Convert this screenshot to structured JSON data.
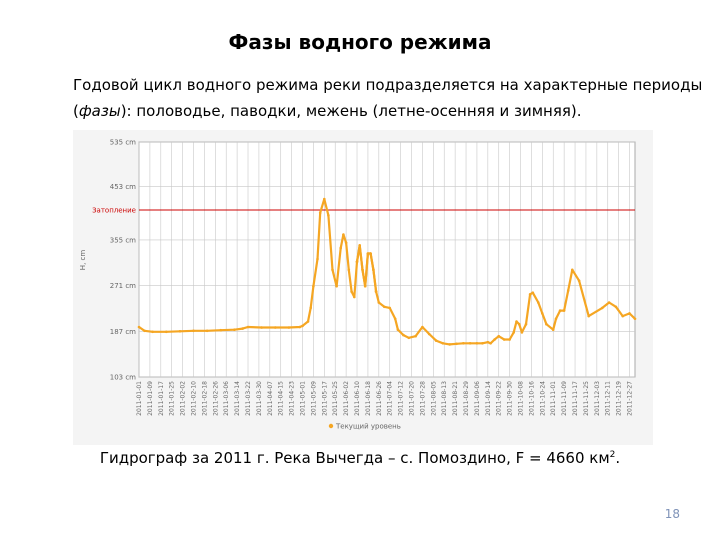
{
  "slide": {
    "title": "Фазы водного режима",
    "body_line1": "Годовой цикл водного режима реки подразделяется на характерные периоды",
    "body_line2_prefix": "(",
    "body_line2_em": "фазы",
    "body_line2_suffix": "): половодье, паводки, межень (летне-осенняя и зимняя).",
    "caption_main": "Гидрограф за 2011 г. Река Вычегда – с. Помоздино, F = 4660 км",
    "caption_sup": "2",
    "caption_end": ".",
    "page_number": "18"
  },
  "colors": {
    "series": "#f5a623",
    "threshold": "#cc0000",
    "grid": "#c8c8c8"
  },
  "chart_data": {
    "type": "line",
    "ylabel": "H, cm",
    "ylim": [
      103,
      535
    ],
    "yticks": [
      {
        "value": 103,
        "label": "103 cm"
      },
      {
        "value": 187,
        "label": "187 cm"
      },
      {
        "value": 271,
        "label": "271 cm"
      },
      {
        "value": 355,
        "label": "355 cm"
      },
      {
        "value": 453,
        "label": "453 cm"
      },
      {
        "value": 535,
        "label": "535 cm"
      }
    ],
    "threshold": {
      "value": 410,
      "label": "Затопление"
    },
    "legend": "Текущий уровень",
    "x_start": "2011-01-01",
    "xlim": [
      0,
      364
    ],
    "xticks": [
      {
        "day": 0,
        "label": "2011-01-01"
      },
      {
        "day": 8,
        "label": "2011-01-09"
      },
      {
        "day": 16,
        "label": "2011-01-17"
      },
      {
        "day": 24,
        "label": "2011-01-25"
      },
      {
        "day": 32,
        "label": "2011-02-02"
      },
      {
        "day": 40,
        "label": "2011-02-10"
      },
      {
        "day": 48,
        "label": "2011-02-18"
      },
      {
        "day": 56,
        "label": "2011-02-26"
      },
      {
        "day": 64,
        "label": "2011-03-06"
      },
      {
        "day": 72,
        "label": "2011-03-14"
      },
      {
        "day": 80,
        "label": "2011-03-22"
      },
      {
        "day": 88,
        "label": "2011-03-30"
      },
      {
        "day": 96,
        "label": "2011-04-07"
      },
      {
        "day": 104,
        "label": "2011-04-15"
      },
      {
        "day": 112,
        "label": "2011-04-23"
      },
      {
        "day": 120,
        "label": "2011-05-01"
      },
      {
        "day": 128,
        "label": "2011-05-09"
      },
      {
        "day": 136,
        "label": "2011-05-17"
      },
      {
        "day": 144,
        "label": "2011-05-25"
      },
      {
        "day": 152,
        "label": "2011-06-02"
      },
      {
        "day": 160,
        "label": "2011-06-10"
      },
      {
        "day": 168,
        "label": "2011-06-18"
      },
      {
        "day": 176,
        "label": "2011-06-26"
      },
      {
        "day": 184,
        "label": "2011-07-04"
      },
      {
        "day": 192,
        "label": "2011-07-12"
      },
      {
        "day": 200,
        "label": "2011-07-20"
      },
      {
        "day": 208,
        "label": "2011-07-28"
      },
      {
        "day": 216,
        "label": "2011-08-05"
      },
      {
        "day": 224,
        "label": "2011-08-13"
      },
      {
        "day": 232,
        "label": "2011-08-21"
      },
      {
        "day": 240,
        "label": "2011-08-29"
      },
      {
        "day": 248,
        "label": "2011-09-06"
      },
      {
        "day": 256,
        "label": "2011-09-14"
      },
      {
        "day": 264,
        "label": "2011-09-22"
      },
      {
        "day": 272,
        "label": "2011-09-30"
      },
      {
        "day": 280,
        "label": "2011-10-08"
      },
      {
        "day": 288,
        "label": "2011-10-16"
      },
      {
        "day": 296,
        "label": "2011-10-24"
      },
      {
        "day": 304,
        "label": "2011-11-01"
      },
      {
        "day": 312,
        "label": "2011-11-09"
      },
      {
        "day": 320,
        "label": "2011-11-17"
      },
      {
        "day": 328,
        "label": "2011-11-25"
      },
      {
        "day": 336,
        "label": "2011-12-03"
      },
      {
        "day": 344,
        "label": "2011-12-11"
      },
      {
        "day": 352,
        "label": "2011-12-19"
      },
      {
        "day": 360,
        "label": "2011-12-27"
      }
    ],
    "grid": true,
    "series": [
      {
        "x": [
          0,
          4,
          10,
          20,
          30,
          40,
          50,
          60,
          70,
          76,
          80,
          90,
          100,
          110,
          118,
          120,
          124,
          126,
          128,
          131,
          133,
          136,
          139,
          142,
          145,
          148,
          150,
          152,
          154,
          156,
          158,
          160,
          162,
          164,
          166,
          168,
          170,
          172,
          174,
          176,
          180,
          184,
          188,
          190,
          194,
          198,
          203,
          208,
          213,
          218,
          223,
          228,
          233,
          238,
          243,
          248,
          252,
          256,
          258,
          261,
          264,
          268,
          272,
          275,
          277,
          279,
          281,
          284,
          287,
          289,
          293,
          296,
          299,
          304,
          306,
          309,
          312,
          315,
          318,
          323,
          330,
          340,
          345,
          350,
          355,
          360,
          364
        ],
        "y": [
          195,
          188,
          186,
          186,
          187,
          188,
          188,
          189,
          190,
          192,
          195,
          194,
          194,
          194,
          195,
          197,
          205,
          230,
          270,
          320,
          405,
          430,
          400,
          300,
          270,
          340,
          365,
          350,
          300,
          260,
          250,
          315,
          345,
          300,
          270,
          330,
          330,
          300,
          260,
          240,
          232,
          230,
          210,
          190,
          180,
          175,
          178,
          195,
          182,
          170,
          165,
          163,
          164,
          165,
          165,
          165,
          165,
          167,
          165,
          172,
          178,
          172,
          172,
          185,
          205,
          200,
          185,
          200,
          255,
          258,
          240,
          220,
          200,
          190,
          210,
          225,
          225,
          262,
          300,
          280,
          215,
          230,
          240,
          232,
          215,
          220,
          210
        ]
      },
      {
        "x": [
          160,
          162,
          164,
          166,
          168,
          170,
          172,
          174
        ],
        "y": [
          315,
          345,
          300,
          270,
          330,
          330,
          300,
          260
        ]
      }
    ]
  }
}
